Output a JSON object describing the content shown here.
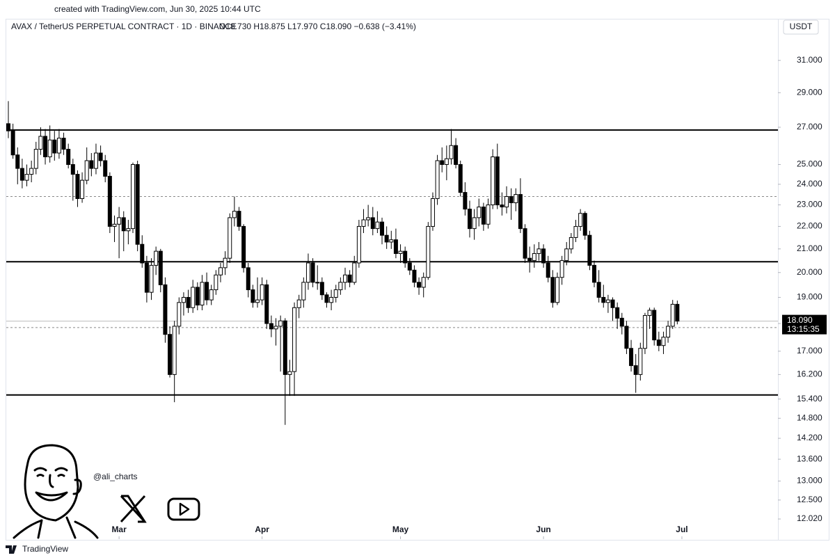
{
  "chart_data": {
    "type": "candlestick",
    "attribution": "created with TradingView.com, Jun 30, 2025 10:44 UTC",
    "title": "AVAX / TetherUS PERPETUAL CONTRACT · 1D · BINANCE",
    "ohlc_text": "O18.730  H18.875  L17.970  C18.090  −0.638 (−3.41%)",
    "currency": "USDT",
    "handle": "@ali_charts",
    "brand": "TradingView",
    "log_scale": true,
    "up_color": "#ffffff",
    "down_color": "#000000",
    "border_color": "#000000",
    "ylim": [
      11.53,
      32.92
    ],
    "yticks": [
      {
        "value": 31,
        "label": "31.000"
      },
      {
        "value": 29,
        "label": "29.000"
      },
      {
        "value": 27,
        "label": "27.000"
      },
      {
        "value": 25,
        "label": "25.000"
      },
      {
        "value": 24,
        "label": "24.000"
      },
      {
        "value": 23,
        "label": "23.000"
      },
      {
        "value": 22,
        "label": "22.000"
      },
      {
        "value": 21,
        "label": "21.000"
      },
      {
        "value": 20,
        "label": "20.000"
      },
      {
        "value": 19,
        "label": "19.000"
      },
      {
        "value": 18,
        "label": "18.000"
      },
      {
        "value": 17,
        "label": "17.000"
      },
      {
        "value": 16.2,
        "label": "16.200"
      },
      {
        "value": 15.4,
        "label": "15.400"
      },
      {
        "value": 14.8,
        "label": "14.800"
      },
      {
        "value": 14.2,
        "label": "14.200"
      },
      {
        "value": 13.6,
        "label": "13.600"
      },
      {
        "value": 13,
        "label": "13.000"
      },
      {
        "value": 12.5,
        "label": "12.500"
      },
      {
        "value": 12.02,
        "label": "12.020"
      }
    ],
    "xticks": [
      {
        "value": 24,
        "label": "Mar"
      },
      {
        "value": 55,
        "label": "Apr"
      },
      {
        "value": 85,
        "label": "May"
      },
      {
        "value": 116,
        "label": "Jun"
      },
      {
        "value": 146,
        "label": "Jul"
      }
    ],
    "solid_levels": [
      26.85,
      20.45,
      15.53
    ],
    "dashed_levels": [
      23.4,
      17.85
    ],
    "last_price": {
      "value": 18.09,
      "label": "18.090",
      "countdown": "13:15:35"
    },
    "candles": [
      [
        27.2,
        28.5,
        26.4,
        26.8
      ],
      [
        26.8,
        27.2,
        25.3,
        25.5
      ],
      [
        25.5,
        25.9,
        24.0,
        24.8
      ],
      [
        24.8,
        25.3,
        23.8,
        24.2
      ],
      [
        24.2,
        25.0,
        23.9,
        24.5
      ],
      [
        24.5,
        25.2,
        24.1,
        24.8
      ],
      [
        24.8,
        26.2,
        24.5,
        25.8
      ],
      [
        25.8,
        27.0,
        25.5,
        26.5
      ],
      [
        26.5,
        26.9,
        25.0,
        25.4
      ],
      [
        25.4,
        27.1,
        25.1,
        26.3
      ],
      [
        26.3,
        26.8,
        25.2,
        25.6
      ],
      [
        25.6,
        26.9,
        25.3,
        26.4
      ],
      [
        26.4,
        26.7,
        25.5,
        25.8
      ],
      [
        25.8,
        26.1,
        24.8,
        25.0
      ],
      [
        25.0,
        25.3,
        23.2,
        24.5
      ],
      [
        24.5,
        24.7,
        22.9,
        23.3
      ],
      [
        23.3,
        24.6,
        23.1,
        24.2
      ],
      [
        24.2,
        25.9,
        24.0,
        25.2
      ],
      [
        25.2,
        25.6,
        24.4,
        24.8
      ],
      [
        24.8,
        26.1,
        24.5,
        25.6
      ],
      [
        25.6,
        26.0,
        24.9,
        25.2
      ],
      [
        25.2,
        25.5,
        24.1,
        24.4
      ],
      [
        24.4,
        24.6,
        21.7,
        22.0
      ],
      [
        22.0,
        22.5,
        21.3,
        22.1
      ],
      [
        22.1,
        22.9,
        20.6,
        22.4
      ],
      [
        22.4,
        22.7,
        20.9,
        21.8
      ],
      [
        21.8,
        22.3,
        21.2,
        21.9
      ],
      [
        21.9,
        25.1,
        21.7,
        25.0
      ],
      [
        25.0,
        25.2,
        20.9,
        21.2
      ],
      [
        21.2,
        21.6,
        20.2,
        20.4
      ],
      [
        20.4,
        20.7,
        18.8,
        19.2
      ],
      [
        19.2,
        20.6,
        18.9,
        20.3
      ],
      [
        20.3,
        21.1,
        19.9,
        20.9
      ],
      [
        20.9,
        21.0,
        19.2,
        19.5
      ],
      [
        19.5,
        19.8,
        17.3,
        17.6
      ],
      [
        17.6,
        17.9,
        16.1,
        16.2
      ],
      [
        16.2,
        18.1,
        15.3,
        17.9
      ],
      [
        17.9,
        19.0,
        17.6,
        18.8
      ],
      [
        18.8,
        19.2,
        18.3,
        19.0
      ],
      [
        19.0,
        19.3,
        18.4,
        18.6
      ],
      [
        18.6,
        19.7,
        18.4,
        19.4
      ],
      [
        19.4,
        19.6,
        18.5,
        18.7
      ],
      [
        18.7,
        19.9,
        18.5,
        19.6
      ],
      [
        19.6,
        20.0,
        18.7,
        18.9
      ],
      [
        18.9,
        19.5,
        18.7,
        19.3
      ],
      [
        19.3,
        20.1,
        19.1,
        19.9
      ],
      [
        19.9,
        20.4,
        19.6,
        20.2
      ],
      [
        20.2,
        20.9,
        19.9,
        20.6
      ],
      [
        20.6,
        22.6,
        20.4,
        22.4
      ],
      [
        22.4,
        23.4,
        22.0,
        22.7
      ],
      [
        22.7,
        22.9,
        21.8,
        22.0
      ],
      [
        22.0,
        22.1,
        20.0,
        20.2
      ],
      [
        20.2,
        20.4,
        19.0,
        19.3
      ],
      [
        19.3,
        19.5,
        18.6,
        18.8
      ],
      [
        18.8,
        19.8,
        18.6,
        18.9
      ],
      [
        18.9,
        19.8,
        18.7,
        19.5
      ],
      [
        19.5,
        19.7,
        17.8,
        18.0
      ],
      [
        18.0,
        18.3,
        17.5,
        17.8
      ],
      [
        17.8,
        18.2,
        17.2,
        17.9
      ],
      [
        17.9,
        18.3,
        16.3,
        18.1
      ],
      [
        18.1,
        18.2,
        14.6,
        16.2
      ],
      [
        16.2,
        16.7,
        15.5,
        16.3
      ],
      [
        16.3,
        18.8,
        15.5,
        18.6
      ],
      [
        18.6,
        19.1,
        18.2,
        18.9
      ],
      [
        18.9,
        19.8,
        18.6,
        19.6
      ],
      [
        19.6,
        20.8,
        19.3,
        20.4
      ],
      [
        20.4,
        20.6,
        19.4,
        19.6
      ],
      [
        19.6,
        20.3,
        19.3,
        19.6
      ],
      [
        19.6,
        19.8,
        18.9,
        19.1
      ],
      [
        19.1,
        19.2,
        18.6,
        18.8
      ],
      [
        18.8,
        19.3,
        18.5,
        19.0
      ],
      [
        19.0,
        19.5,
        18.8,
        19.3
      ],
      [
        19.3,
        19.8,
        19.1,
        19.6
      ],
      [
        19.6,
        20.2,
        19.3,
        19.9
      ],
      [
        19.9,
        20.1,
        19.4,
        19.6
      ],
      [
        19.6,
        20.7,
        19.5,
        20.4
      ],
      [
        20.4,
        22.3,
        20.2,
        22.0
      ],
      [
        22.0,
        22.8,
        21.7,
        22.3
      ],
      [
        22.3,
        23.0,
        22.0,
        22.4
      ],
      [
        22.4,
        22.9,
        21.6,
        21.9
      ],
      [
        21.9,
        22.7,
        21.7,
        22.2
      ],
      [
        22.2,
        22.4,
        21.2,
        21.6
      ],
      [
        21.6,
        22.0,
        21.0,
        21.3
      ],
      [
        21.3,
        21.8,
        21.0,
        21.4
      ],
      [
        21.4,
        21.9,
        20.6,
        20.8
      ],
      [
        20.8,
        21.2,
        20.4,
        20.9
      ],
      [
        20.9,
        21.1,
        20.2,
        20.4
      ],
      [
        20.4,
        20.6,
        19.9,
        20.1
      ],
      [
        20.1,
        20.3,
        19.4,
        19.6
      ],
      [
        19.6,
        19.8,
        19.1,
        19.4
      ],
      [
        19.4,
        20.0,
        19.0,
        19.8
      ],
      [
        19.8,
        22.2,
        19.7,
        22.0
      ],
      [
        22.0,
        23.6,
        21.8,
        23.3
      ],
      [
        23.3,
        25.5,
        23.0,
        25.2
      ],
      [
        25.2,
        25.9,
        24.6,
        25.0
      ],
      [
        25.0,
        26.0,
        24.2,
        25.3
      ],
      [
        25.3,
        26.9,
        25.0,
        26.0
      ],
      [
        26.0,
        26.4,
        24.8,
        25.0
      ],
      [
        25.0,
        25.2,
        23.4,
        23.6
      ],
      [
        23.6,
        24.1,
        22.5,
        22.8
      ],
      [
        22.8,
        23.2,
        21.5,
        21.9
      ],
      [
        21.9,
        22.8,
        21.4,
        22.4
      ],
      [
        22.4,
        23.3,
        22.0,
        22.9
      ],
      [
        22.9,
        23.1,
        21.8,
        22.1
      ],
      [
        22.1,
        23.3,
        21.9,
        23.0
      ],
      [
        23.0,
        25.8,
        22.8,
        25.4
      ],
      [
        25.4,
        26.1,
        22.8,
        23.0
      ],
      [
        23.0,
        23.6,
        22.5,
        22.9
      ],
      [
        22.9,
        23.9,
        22.6,
        23.4
      ],
      [
        23.4,
        23.8,
        22.3,
        23.1
      ],
      [
        23.1,
        23.8,
        22.7,
        23.5
      ],
      [
        23.5,
        24.3,
        21.7,
        21.9
      ],
      [
        21.9,
        22.1,
        20.4,
        20.6
      ],
      [
        20.6,
        21.1,
        20.0,
        20.5
      ],
      [
        20.5,
        21.2,
        20.2,
        20.8
      ],
      [
        20.8,
        21.3,
        20.5,
        21.0
      ],
      [
        21.0,
        21.2,
        20.2,
        20.4
      ],
      [
        20.4,
        20.7,
        19.6,
        19.8
      ],
      [
        19.8,
        20.1,
        18.6,
        18.8
      ],
      [
        18.8,
        20.0,
        18.7,
        19.8
      ],
      [
        19.8,
        20.7,
        19.5,
        20.5
      ],
      [
        20.5,
        21.3,
        20.3,
        21.0
      ],
      [
        21.0,
        21.7,
        20.8,
        21.5
      ],
      [
        21.5,
        22.3,
        21.3,
        22.0
      ],
      [
        22.0,
        22.8,
        21.8,
        22.6
      ],
      [
        22.6,
        22.7,
        21.4,
        21.6
      ],
      [
        21.6,
        21.8,
        20.1,
        20.3
      ],
      [
        20.3,
        20.5,
        19.4,
        19.6
      ],
      [
        19.6,
        20.1,
        18.8,
        19.0
      ],
      [
        19.0,
        19.5,
        18.6,
        18.8
      ],
      [
        18.8,
        19.1,
        18.4,
        18.9
      ],
      [
        18.9,
        19.0,
        18.1,
        18.6
      ],
      [
        18.6,
        18.8,
        17.8,
        18.2
      ],
      [
        18.2,
        18.4,
        17.6,
        17.9
      ],
      [
        17.9,
        18.1,
        16.9,
        17.1
      ],
      [
        17.1,
        17.4,
        16.3,
        16.5
      ],
      [
        16.5,
        16.9,
        15.6,
        16.2
      ],
      [
        16.2,
        17.3,
        16.0,
        17.1
      ],
      [
        17.1,
        18.4,
        16.9,
        18.3
      ],
      [
        18.3,
        18.6,
        17.8,
        18.5
      ],
      [
        18.5,
        18.6,
        17.2,
        17.4
      ],
      [
        17.4,
        17.7,
        17.0,
        17.2
      ],
      [
        17.2,
        17.7,
        16.9,
        17.5
      ],
      [
        17.5,
        18.1,
        17.3,
        17.9
      ],
      [
        17.9,
        18.9,
        17.8,
        18.73
      ],
      [
        18.73,
        18.875,
        17.97,
        18.09
      ]
    ]
  }
}
